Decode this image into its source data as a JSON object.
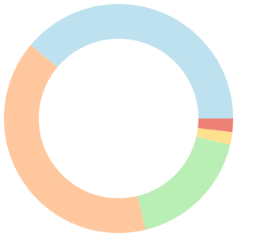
{
  "chart_data": {
    "type": "donut",
    "values": [
      38.9,
      39.9,
      17.5,
      1.8,
      1.9
    ],
    "colors": [
      "#bee1ef",
      "#ffc79d",
      "#b9eeb5",
      "#ffe08f",
      "#ee8176"
    ]
  }
}
